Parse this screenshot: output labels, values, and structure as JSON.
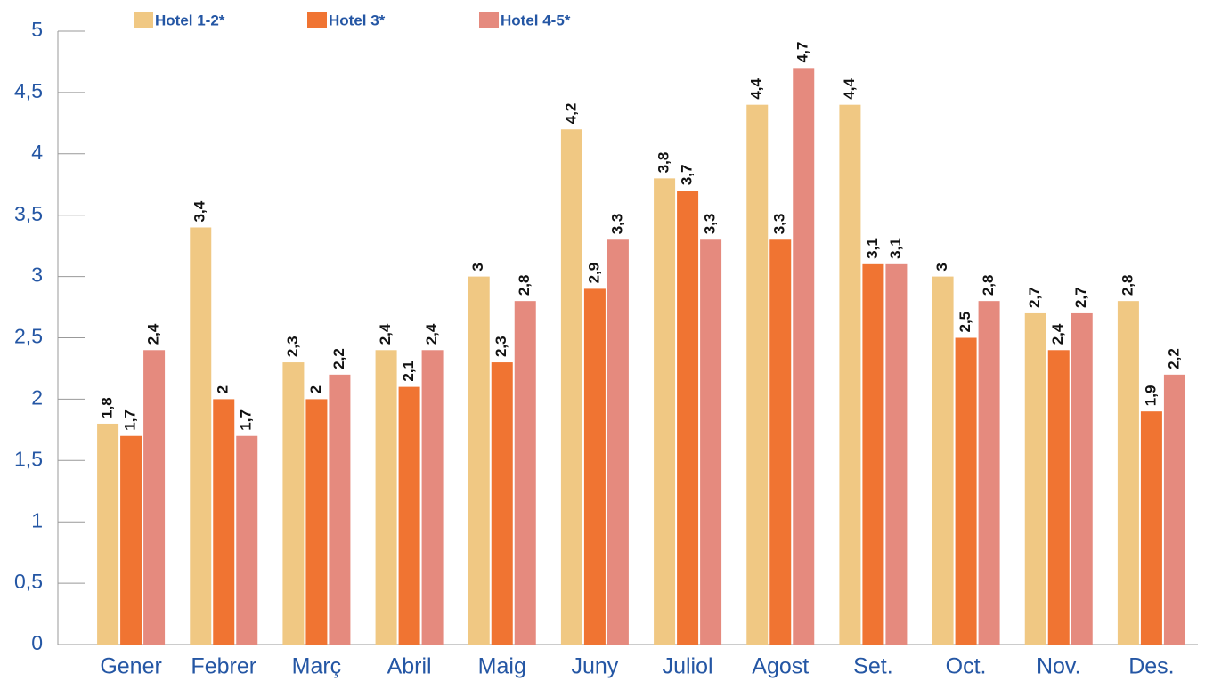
{
  "chart_data": {
    "type": "bar",
    "categories": [
      "Gener",
      "Febrer",
      "Març",
      "Abril",
      "Maig",
      "Juny",
      "Juliol",
      "Agost",
      "Set.",
      "Oct.",
      "Nov.",
      "Des."
    ],
    "series": [
      {
        "name": "Hotel 1-2*",
        "color": "#f0c883",
        "values": [
          1.8,
          3.4,
          2.3,
          2.4,
          3,
          4.2,
          3.8,
          4.4,
          4.4,
          3,
          2.7,
          2.8
        ],
        "value_labels": [
          "1,8",
          "3,4",
          "2,3",
          "2,4",
          "3",
          "4,2",
          "3,8",
          "4,4",
          "4,4",
          "3",
          "2,7",
          "2,8"
        ]
      },
      {
        "name": "Hotel 3*",
        "color": "#f07432",
        "values": [
          1.7,
          2,
          2,
          2.1,
          2.3,
          2.9,
          3.7,
          3.3,
          3.1,
          2.5,
          2.4,
          1.9
        ],
        "value_labels": [
          "1,7",
          "2",
          "2",
          "2,1",
          "2,3",
          "2,9",
          "3,7",
          "3,3",
          "3,1",
          "2,5",
          "2,4",
          "1,9"
        ]
      },
      {
        "name": "Hotel 4-5*",
        "color": "#e58a7e",
        "values": [
          2.4,
          1.7,
          2.2,
          2.4,
          2.8,
          3.3,
          3.3,
          4.7,
          3.1,
          2.8,
          2.7,
          2.2
        ],
        "value_labels": [
          "2,4",
          "1,7",
          "2,2",
          "2,4",
          "2,8",
          "3,3",
          "3,3",
          "4,7",
          "3,1",
          "2,8",
          "2,7",
          "2,2"
        ]
      }
    ],
    "ylim": [
      0,
      5
    ],
    "yticks": [
      0,
      {
        "value": 0.5,
        "label": "0,5"
      },
      1,
      {
        "value": 1.5,
        "label": "1,5"
      },
      2,
      {
        "value": 2.5,
        "label": "2,5"
      },
      3,
      {
        "value": 3.5,
        "label": "3,5"
      },
      4,
      {
        "value": 4.5,
        "label": "4,5"
      },
      5
    ],
    "grid": false,
    "legend": "top"
  }
}
